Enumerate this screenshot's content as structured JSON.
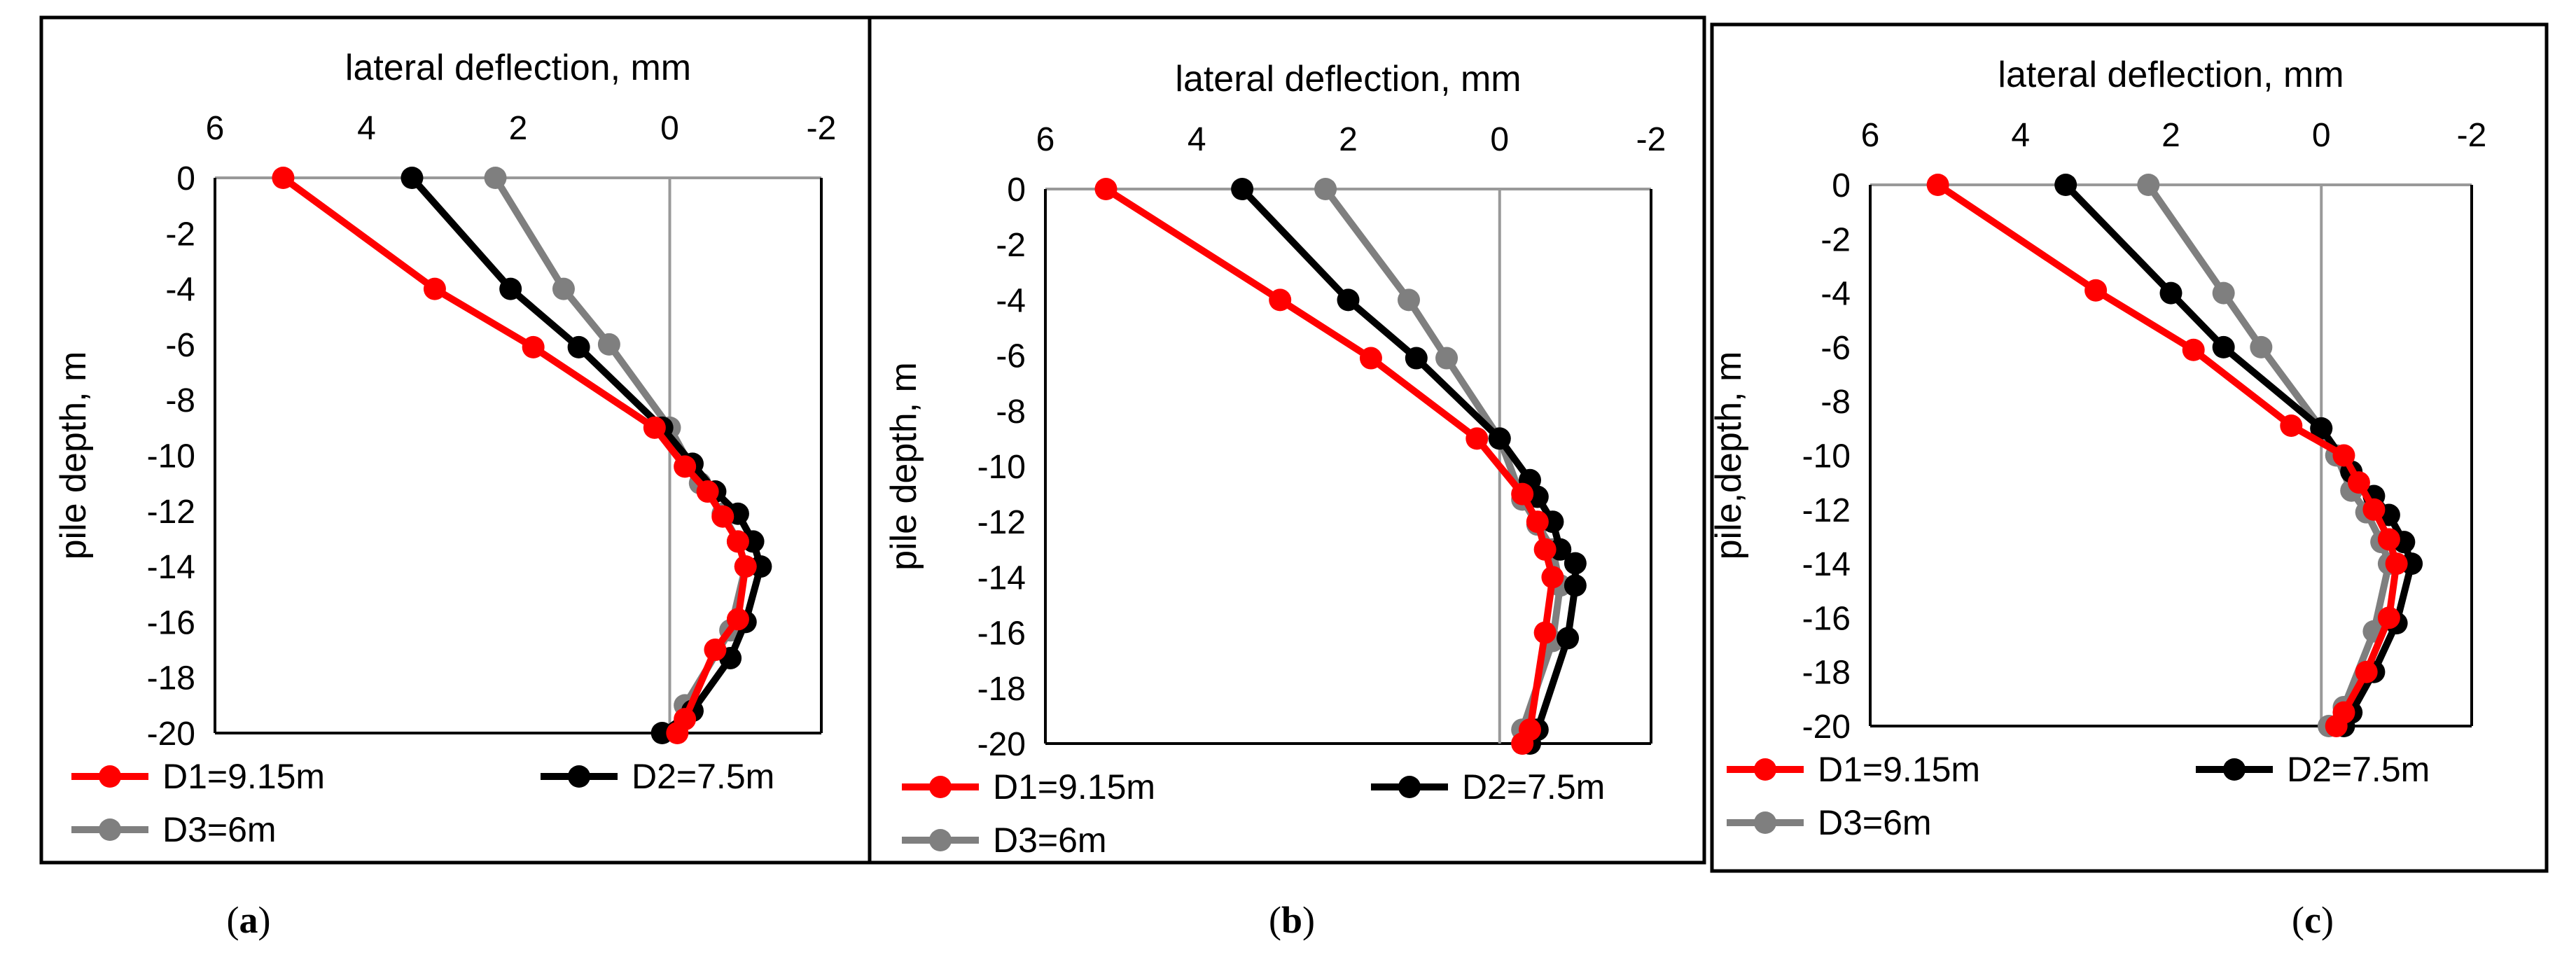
{
  "colors": {
    "series_1": "#ff0000",
    "series_2": "#000000",
    "series_3": "#7f7f7f",
    "zero_line": "#999999",
    "axis_line": "#999999",
    "frame": "#000000"
  },
  "chart_data": [
    {
      "type": "line",
      "panel": "a",
      "caption_letter": "a",
      "xlabel": "lateral deflection, mm",
      "ylabel": "pile depth, m",
      "xlim": [
        6,
        -2
      ],
      "ylim": [
        0,
        -20
      ],
      "xticks": [
        "6",
        "4",
        "2",
        "0",
        "-2"
      ],
      "xtick_values": [
        6,
        4,
        2,
        0,
        -2
      ],
      "yticks": [
        "0",
        "-2",
        "-4",
        "-6",
        "-8",
        "-10",
        "-12",
        "-14",
        "-16",
        "-18",
        "-20"
      ],
      "ytick_values": [
        0,
        -2,
        -4,
        -6,
        -8,
        -10,
        -12,
        -14,
        -16,
        -18,
        -20
      ],
      "legend_position": "bottom",
      "series": [
        {
          "name": "D1=9.15m",
          "points": [
            [
              5.1,
              0
            ],
            [
              3.1,
              -4
            ],
            [
              1.8,
              -6.1
            ],
            [
              0.2,
              -9
            ],
            [
              -0.2,
              -10.4
            ],
            [
              -0.5,
              -11.3
            ],
            [
              -0.7,
              -12.2
            ],
            [
              -0.9,
              -13.1
            ],
            [
              -1.0,
              -14
            ],
            [
              -0.9,
              -15.9
            ],
            [
              -0.6,
              -17
            ],
            [
              -0.2,
              -19.5
            ],
            [
              -0.1,
              -20
            ]
          ]
        },
        {
          "name": "D2=7.5m",
          "points": [
            [
              3.4,
              0
            ],
            [
              2.1,
              -4
            ],
            [
              1.2,
              -6.1
            ],
            [
              0.1,
              -9
            ],
            [
              -0.3,
              -10.3
            ],
            [
              -0.6,
              -11.3
            ],
            [
              -0.9,
              -12.1
            ],
            [
              -1.1,
              -13.1
            ],
            [
              -1.2,
              -14
            ],
            [
              -1.0,
              -16
            ],
            [
              -0.8,
              -17.3
            ],
            [
              -0.3,
              -19.2
            ],
            [
              0.1,
              -20
            ]
          ]
        },
        {
          "name": "D3=6m",
          "points": [
            [
              2.3,
              0
            ],
            [
              1.4,
              -4
            ],
            [
              0.8,
              -6
            ],
            [
              0.0,
              -9
            ],
            [
              -0.4,
              -11
            ],
            [
              -0.7,
              -12.1
            ],
            [
              -0.9,
              -13.1
            ],
            [
              -1.0,
              -14
            ],
            [
              -0.8,
              -16.3
            ],
            [
              -0.2,
              -19
            ]
          ]
        }
      ]
    },
    {
      "type": "line",
      "panel": "b",
      "caption_letter": "b",
      "xlabel": "lateral deflection, mm",
      "ylabel": "pile depth, m",
      "xlim": [
        6,
        -2
      ],
      "ylim": [
        0,
        -20
      ],
      "xticks": [
        "6",
        "4",
        "2",
        "0",
        "-2"
      ],
      "xtick_values": [
        6,
        4,
        2,
        0,
        -2
      ],
      "yticks": [
        "0",
        "-2",
        "-4",
        "-6",
        "-8",
        "-10",
        "-12",
        "-14",
        "-16",
        "-18",
        "-20"
      ],
      "ytick_values": [
        0,
        -2,
        -4,
        -6,
        -8,
        -10,
        -12,
        -14,
        -16,
        -18,
        -20
      ],
      "legend_position": "bottom",
      "series": [
        {
          "name": "D1=9.15m",
          "points": [
            [
              5.2,
              0
            ],
            [
              2.9,
              -4
            ],
            [
              1.7,
              -6.1
            ],
            [
              0.3,
              -9
            ],
            [
              -0.3,
              -11
            ],
            [
              -0.5,
              -12
            ],
            [
              -0.6,
              -13
            ],
            [
              -0.7,
              -14
            ],
            [
              -0.6,
              -16
            ],
            [
              -0.4,
              -19.5
            ],
            [
              -0.3,
              -20
            ]
          ]
        },
        {
          "name": "D2=7.5m",
          "points": [
            [
              3.4,
              0
            ],
            [
              2.0,
              -4
            ],
            [
              1.1,
              -6.1
            ],
            [
              0.0,
              -9
            ],
            [
              -0.4,
              -10.5
            ],
            [
              -0.5,
              -11.1
            ],
            [
              -0.7,
              -12
            ],
            [
              -0.8,
              -13
            ],
            [
              -1.0,
              -13.5
            ],
            [
              -1.0,
              -14.3
            ],
            [
              -0.9,
              -16.2
            ],
            [
              -0.5,
              -19.5
            ],
            [
              -0.4,
              -20
            ]
          ]
        },
        {
          "name": "D3=6m",
          "points": [
            [
              2.3,
              0
            ],
            [
              1.2,
              -4
            ],
            [
              0.7,
              -6.1
            ],
            [
              0.0,
              -9
            ],
            [
              -0.3,
              -11.2
            ],
            [
              -0.5,
              -12.1
            ],
            [
              -0.7,
              -13
            ],
            [
              -0.8,
              -14.3
            ],
            [
              -0.7,
              -16.3
            ],
            [
              -0.3,
              -19.5
            ],
            [
              -0.3,
              -20
            ]
          ]
        }
      ]
    },
    {
      "type": "line",
      "panel": "c",
      "caption_letter": "c",
      "xlabel": "lateral deflection, mm",
      "ylabel": "pile,depth, m",
      "xlim": [
        6,
        -2
      ],
      "ylim": [
        0,
        -20
      ],
      "xticks": [
        "6",
        "4",
        "2",
        "0",
        "-2"
      ],
      "xtick_values": [
        6,
        4,
        2,
        0,
        -2
      ],
      "yticks": [
        "0",
        "-2",
        "-4",
        "-6",
        "-8",
        "-10",
        "-12",
        "-14",
        "-16",
        "-18",
        "-20"
      ],
      "ytick_values": [
        0,
        -2,
        -4,
        -6,
        -8,
        -10,
        -12,
        -14,
        -16,
        -18,
        -20
      ],
      "legend_position": "bottom",
      "series": [
        {
          "name": "D1=9.15m",
          "points": [
            [
              5.1,
              0
            ],
            [
              3.0,
              -3.9
            ],
            [
              1.7,
              -6.1
            ],
            [
              0.4,
              -8.9
            ],
            [
              -0.3,
              -10
            ],
            [
              -0.5,
              -11
            ],
            [
              -0.7,
              -12
            ],
            [
              -0.9,
              -13.1
            ],
            [
              -1.0,
              -14
            ],
            [
              -0.9,
              -16
            ],
            [
              -0.6,
              -18
            ],
            [
              -0.3,
              -19.5
            ],
            [
              -0.2,
              -20
            ]
          ]
        },
        {
          "name": "D2=7.5m",
          "points": [
            [
              3.4,
              0
            ],
            [
              2.0,
              -4
            ],
            [
              1.3,
              -6
            ],
            [
              0.0,
              -9
            ],
            [
              -0.4,
              -10.6
            ],
            [
              -0.7,
              -11.5
            ],
            [
              -0.9,
              -12.2
            ],
            [
              -1.1,
              -13.2
            ],
            [
              -1.2,
              -14
            ],
            [
              -1.0,
              -16.2
            ],
            [
              -0.7,
              -18
            ],
            [
              -0.4,
              -19.5
            ],
            [
              -0.3,
              -20
            ]
          ]
        },
        {
          "name": "D3=6m",
          "points": [
            [
              2.3,
              0
            ],
            [
              1.3,
              -4
            ],
            [
              0.8,
              -6
            ],
            [
              0.0,
              -9
            ],
            [
              -0.2,
              -10
            ],
            [
              -0.4,
              -11.3
            ],
            [
              -0.6,
              -12.1
            ],
            [
              -0.8,
              -13.2
            ],
            [
              -0.9,
              -14
            ],
            [
              -0.7,
              -16.5
            ],
            [
              -0.3,
              -19.3
            ],
            [
              -0.1,
              -20
            ]
          ]
        }
      ]
    }
  ]
}
